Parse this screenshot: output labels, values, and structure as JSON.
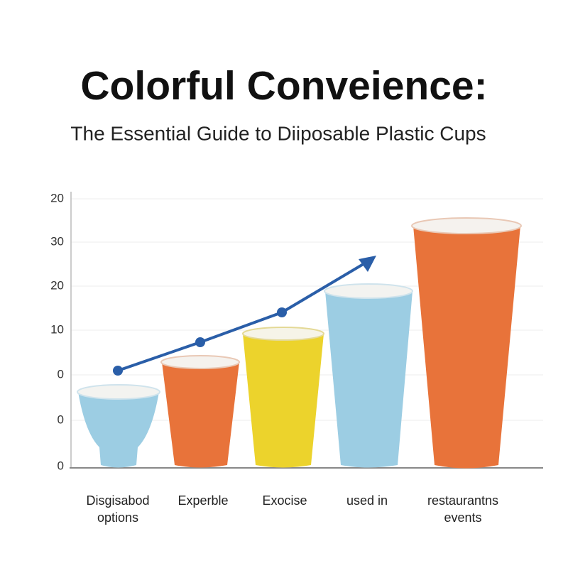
{
  "header": {
    "title": "Colorful Conveience:",
    "subtitle": "The Essential Guide to Diiposable Plastic Cups"
  },
  "axis": {
    "labels": [
      "20",
      "30",
      "20",
      "10",
      "0",
      "0",
      "0"
    ]
  },
  "categories": [
    {
      "lines": [
        "Disgisabod",
        "options"
      ]
    },
    {
      "lines": [
        "Experble"
      ]
    },
    {
      "lines": [
        "Exocise"
      ]
    },
    {
      "lines": [
        "used in"
      ]
    },
    {
      "lines": [
        "restaurantns",
        "events"
      ]
    }
  ]
}
